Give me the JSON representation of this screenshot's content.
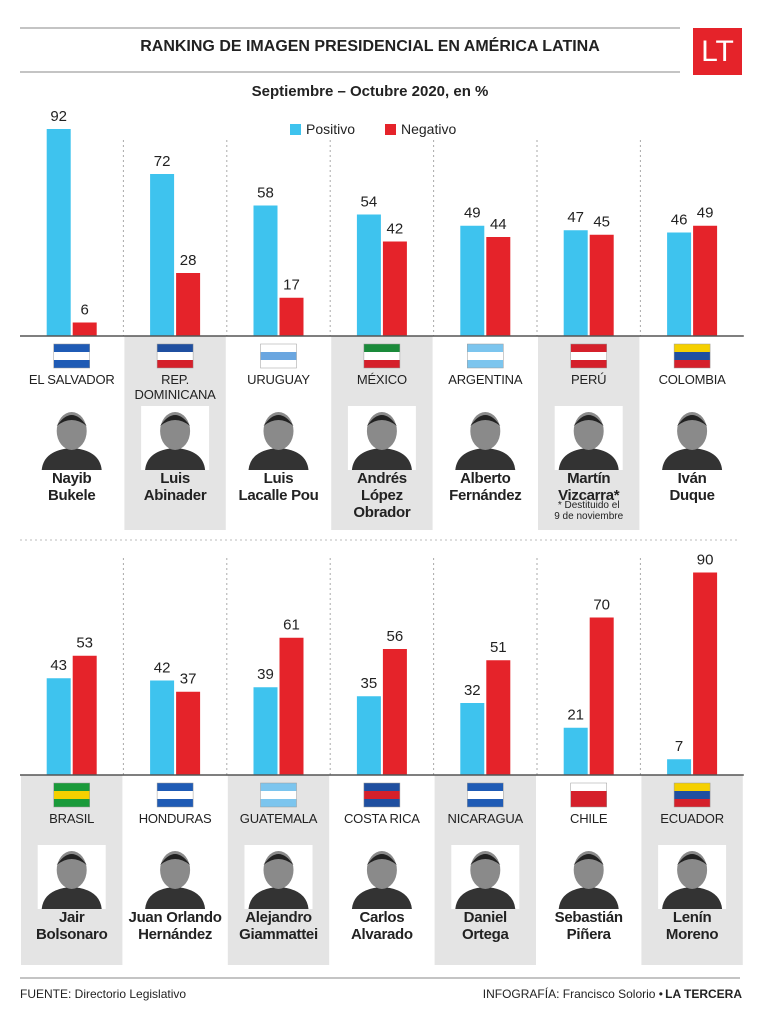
{
  "header": {
    "title": "RANKING DE IMAGEN PRESIDENCIAL EN AMÉRICA LATINA",
    "logo": "LT",
    "subtitle": "Septiembre – Octubre 2020, en %"
  },
  "chart_data": [
    {
      "type": "bar",
      "categories": [
        "EL SALVADOR",
        "REP.\nDOMINICANA",
        "URUGUAY",
        "MÉXICO",
        "ARGENTINA",
        "PERÚ",
        "COLOMBIA"
      ],
      "presidents": [
        "Nayib\nBukele",
        "Luis\nAbinader",
        "Luis\nLacalle Pou",
        "Andrés\nLópez Obrador",
        "Alberto\nFernández",
        "Martín\nVizcarra*",
        "Iván\nDuque"
      ],
      "series": [
        {
          "name": "Positivo",
          "color": "#3ec3ee",
          "values": [
            92,
            72,
            58,
            54,
            49,
            47,
            46
          ]
        },
        {
          "name": "Negativo",
          "color": "#e5232a",
          "values": [
            6,
            28,
            17,
            42,
            44,
            45,
            49
          ]
        }
      ]
    },
    {
      "type": "bar",
      "categories": [
        "BRASIL",
        "HONDURAS",
        "GUATEMALA",
        "COSTA RICA",
        "NICARAGUA",
        "CHILE",
        "ECUADOR"
      ],
      "presidents": [
        "Jair\nBolsonaro",
        "Juan Orlando\nHernández",
        "Alejandro\nGiammattei",
        "Carlos\nAlvarado",
        "Daniel\nOrtega",
        "Sebastián\nPiñera",
        "Lenín\nMoreno"
      ],
      "series": [
        {
          "color": "#3ec3ee",
          "values": [
            43,
            42,
            39,
            35,
            32,
            21,
            7
          ]
        },
        {
          "color": "#e5232a",
          "values": [
            53,
            37,
            61,
            56,
            51,
            70,
            90
          ]
        }
      ]
    }
  ],
  "note": "* Destituido el\n9 de noviembre",
  "footer": {
    "source": "FUENTE: Directorio Legislativo",
    "credit": "INFOGRAFÍA: Francisco Solorio •",
    "publisher": "LA TERCERA"
  }
}
